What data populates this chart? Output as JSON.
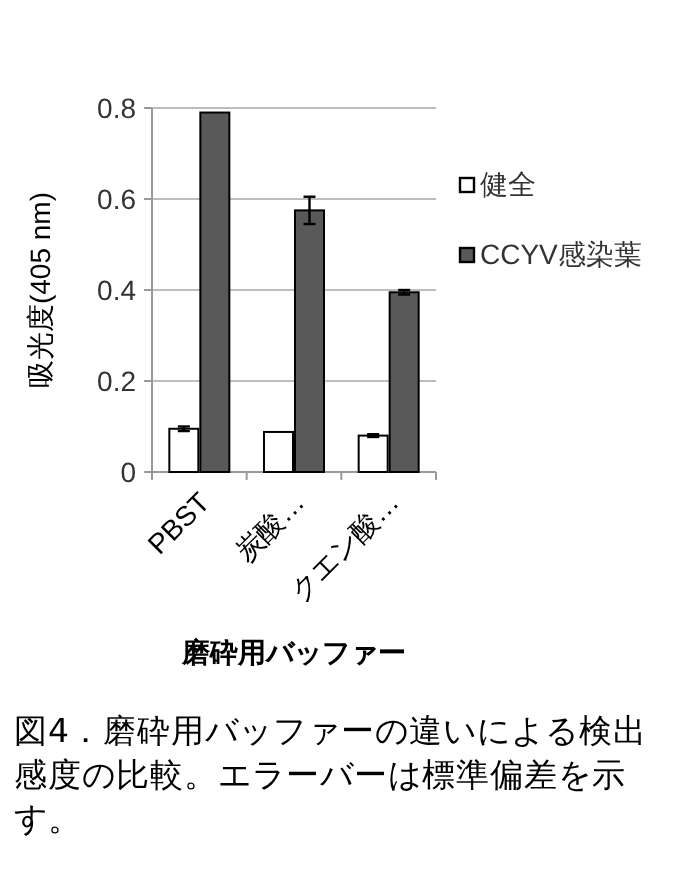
{
  "chart_data": {
    "type": "bar",
    "xlabel": "磨砕用バッファー",
    "ylabel": "吸光度(405 nm)",
    "categories": [
      "PBST",
      "炭酸…",
      "クエン酸…"
    ],
    "series": [
      {
        "name": "健全",
        "color": "#ffffff",
        "values": [
          0.095,
          0.088,
          0.08
        ],
        "errors": [
          0.005,
          null,
          0.003
        ]
      },
      {
        "name": "CCYV感染葉",
        "color": "#595959",
        "values": [
          0.79,
          0.575,
          0.395
        ],
        "errors": [
          null,
          0.03,
          0.005
        ]
      }
    ],
    "ylim": [
      0,
      0.8
    ],
    "yticks": [
      0,
      0.2,
      0.4,
      0.6,
      0.8
    ],
    "grid": "y",
    "legend": "right",
    "annotations": [
      "図4．磨砕用バッファーの違いによる検出感度の比較。エラーバーは標準偏差を示す。"
    ]
  }
}
